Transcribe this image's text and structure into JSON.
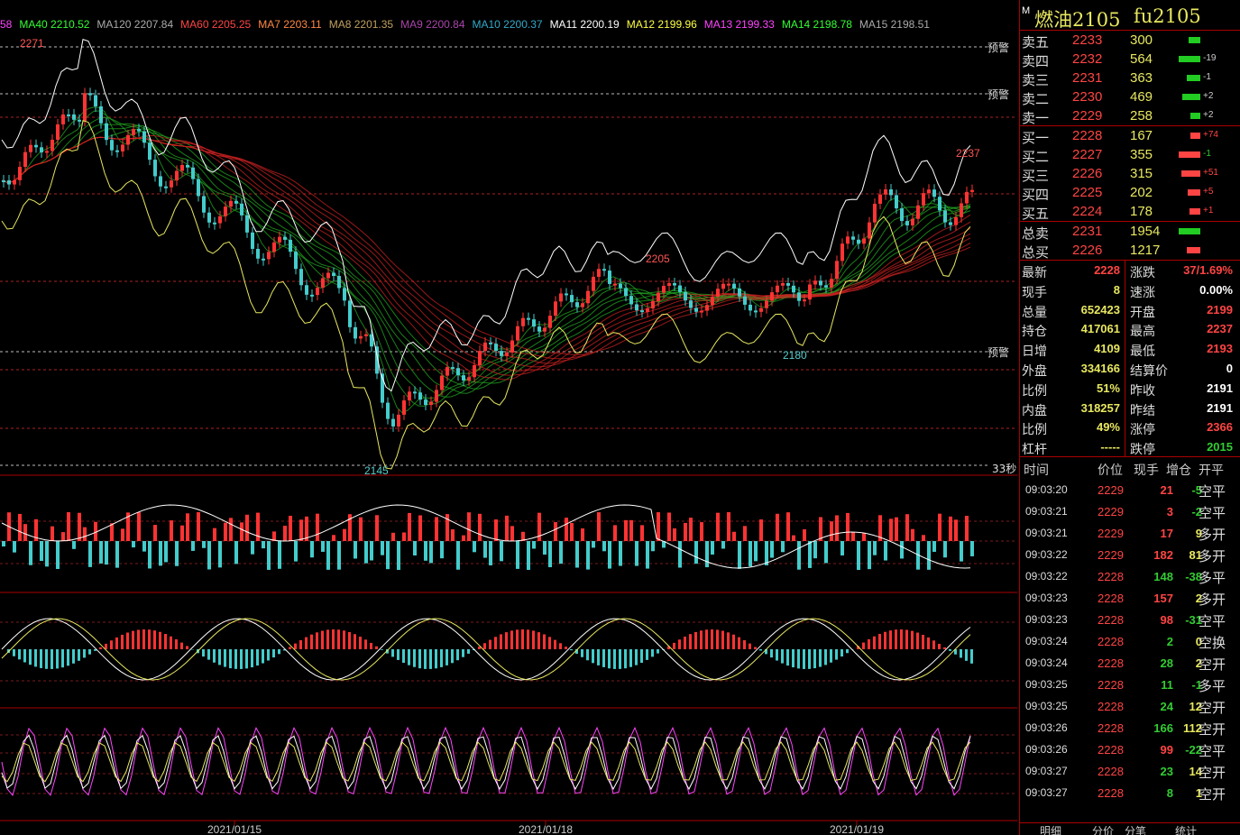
{
  "ma_legend": [
    {
      "label": "58",
      "color": "#ff44ff"
    },
    {
      "label": "MA40 2210.52",
      "color": "#33ff33"
    },
    {
      "label": "MA120 2207.84",
      "color": "#aaaaaa"
    },
    {
      "label": "MA60 2205.25",
      "color": "#ff4444"
    },
    {
      "label": "MA7 2203.11",
      "color": "#ff8844"
    },
    {
      "label": "MA8 2201.35",
      "color": "#c0a060"
    },
    {
      "label": "MA9 2200.84",
      "color": "#aa44aa"
    },
    {
      "label": "MA10 2200.37",
      "color": "#33aacc"
    },
    {
      "label": "MA11 2200.19",
      "color": "#ffffff"
    },
    {
      "label": "MA12 2199.96",
      "color": "#ffff44"
    },
    {
      "label": "MA13 2199.33",
      "color": "#ff44ff"
    },
    {
      "label": "MA14 2198.78",
      "color": "#33ff33"
    },
    {
      "label": "MA15 2198.51",
      "color": "#aaaaaa"
    }
  ],
  "chart_labels": {
    "high_left": "2271",
    "low": "2145",
    "mid_high": "2205",
    "mid_low": "2180",
    "recent_high": "2237",
    "warn": "预警",
    "countdown": "33秒"
  },
  "dates": [
    "2021/01/15",
    "2021/01/18",
    "2021/01/19"
  ],
  "instrument": {
    "mark": "M",
    "name": "燃油2105",
    "code": "fu2105"
  },
  "asks": [
    {
      "label": "卖五",
      "price": "2233",
      "vol": "300",
      "chg": ""
    },
    {
      "label": "卖四",
      "price": "2232",
      "vol": "564",
      "chg": "-19"
    },
    {
      "label": "卖三",
      "price": "2231",
      "vol": "363",
      "chg": "-1"
    },
    {
      "label": "卖二",
      "price": "2230",
      "vol": "469",
      "chg": "+2"
    },
    {
      "label": "卖一",
      "price": "2229",
      "vol": "258",
      "chg": "+2"
    }
  ],
  "bids": [
    {
      "label": "买一",
      "price": "2228",
      "vol": "167",
      "chg": "+74"
    },
    {
      "label": "买二",
      "price": "2227",
      "vol": "355",
      "chg": "-1"
    },
    {
      "label": "买三",
      "price": "2226",
      "vol": "315",
      "chg": "+51"
    },
    {
      "label": "买四",
      "price": "2225",
      "vol": "202",
      "chg": "+5"
    },
    {
      "label": "买五",
      "price": "2224",
      "vol": "178",
      "chg": "+1"
    }
  ],
  "totals": [
    {
      "label": "总卖",
      "price": "2231",
      "vol": "1954"
    },
    {
      "label": "总买",
      "price": "2226",
      "vol": "1217"
    }
  ],
  "stats": [
    {
      "l": "最新",
      "lv": "2228",
      "lc": "#ff4444",
      "r": "涨跌",
      "rv": "37/1.69%",
      "rc": "#ff4444"
    },
    {
      "l": "现手",
      "lv": "8",
      "lc": "#e8e860",
      "r": "速涨",
      "rv": "0.00%",
      "rc": "#ffffff"
    },
    {
      "l": "总量",
      "lv": "652423",
      "lc": "#e8e860",
      "r": "开盘",
      "rv": "2199",
      "rc": "#ff4444"
    },
    {
      "l": "持仓",
      "lv": "417061",
      "lc": "#e8e860",
      "r": "最高",
      "rv": "2237",
      "rc": "#ff4444"
    },
    {
      "l": "日增",
      "lv": "4109",
      "lc": "#e8e860",
      "r": "最低",
      "rv": "2193",
      "rc": "#ff4444"
    },
    {
      "l": "外盘",
      "lv": "334166",
      "lc": "#e8e860",
      "r": "结算价",
      "rv": "0",
      "rc": "#ffffff"
    },
    {
      "l": "比例",
      "lv": "51%",
      "lc": "#e8e860",
      "r": "昨收",
      "rv": "2191",
      "rc": "#ffffff"
    },
    {
      "l": "内盘",
      "lv": "318257",
      "lc": "#e8e860",
      "r": "昨结",
      "rv": "2191",
      "rc": "#ffffff"
    },
    {
      "l": "比例",
      "lv": "49%",
      "lc": "#e8e860",
      "r": "涨停",
      "rv": "2366",
      "rc": "#ff4444"
    },
    {
      "l": "杠杆",
      "lv": "-----",
      "lc": "#e8e860",
      "r": "跌停",
      "rv": "2015",
      "rc": "#33cc33"
    }
  ],
  "tick_header": {
    "time": "时间",
    "price": "价位",
    "vol": "现手",
    "oi": "增仓",
    "type": "开平"
  },
  "ticks": [
    {
      "t": "09:03:20",
      "p": "2229",
      "v": "21",
      "vc": "#ff4444",
      "d": "-5",
      "k": "空平"
    },
    {
      "t": "09:03:21",
      "p": "2229",
      "v": "3",
      "vc": "#ff4444",
      "d": "-2",
      "k": "空平"
    },
    {
      "t": "09:03:21",
      "p": "2229",
      "v": "17",
      "vc": "#ff4444",
      "d": "9",
      "k": "多开"
    },
    {
      "t": "09:03:22",
      "p": "2229",
      "v": "182",
      "vc": "#ff4444",
      "d": "81",
      "k": "多开"
    },
    {
      "t": "09:03:22",
      "p": "2228",
      "v": "148",
      "vc": "#33cc33",
      "d": "-38",
      "k": "多平"
    },
    {
      "t": "09:03:23",
      "p": "2228",
      "v": "157",
      "vc": "#ff4444",
      "d": "2",
      "k": "多开"
    },
    {
      "t": "09:03:23",
      "p": "2228",
      "v": "98",
      "vc": "#ff4444",
      "d": "-31",
      "k": "空平"
    },
    {
      "t": "09:03:24",
      "p": "2228",
      "v": "2",
      "vc": "#33cc33",
      "d": "0",
      "k": "空换"
    },
    {
      "t": "09:03:24",
      "p": "2228",
      "v": "28",
      "vc": "#33cc33",
      "d": "2",
      "k": "空开"
    },
    {
      "t": "09:03:25",
      "p": "2228",
      "v": "11",
      "vc": "#33cc33",
      "d": "-1",
      "k": "多平"
    },
    {
      "t": "09:03:25",
      "p": "2228",
      "v": "24",
      "vc": "#33cc33",
      "d": "12",
      "k": "空开"
    },
    {
      "t": "09:03:26",
      "p": "2228",
      "v": "166",
      "vc": "#33cc33",
      "d": "112",
      "k": "空开"
    },
    {
      "t": "09:03:26",
      "p": "2228",
      "v": "99",
      "vc": "#ff4444",
      "d": "-22",
      "k": "空平"
    },
    {
      "t": "09:03:27",
      "p": "2228",
      "v": "23",
      "vc": "#33cc33",
      "d": "14",
      "k": "空开"
    },
    {
      "t": "09:03:27",
      "p": "2228",
      "v": "8",
      "vc": "#33cc33",
      "d": "1",
      "k": "空开"
    }
  ],
  "bottom_tabs": [
    "明细",
    "分价",
    "分笔",
    "统计"
  ]
}
